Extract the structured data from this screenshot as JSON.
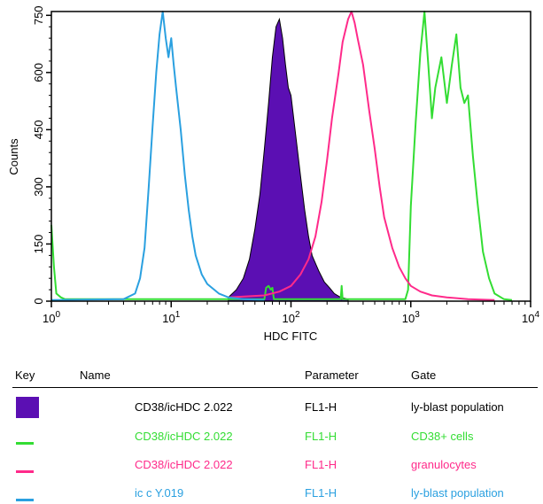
{
  "chart_data": {
    "type": "histogram-overlay",
    "xlabel": "HDC FITC",
    "ylabel": "Counts",
    "x_scale": "log",
    "xlim": [
      1,
      10000
    ],
    "ylim": [
      0,
      760
    ],
    "x_tick_values": [
      1,
      10,
      100,
      1000,
      10000
    ],
    "x_ticks": [
      {
        "base": "10",
        "exp": "0"
      },
      {
        "base": "10",
        "exp": "1"
      },
      {
        "base": "10",
        "exp": "2"
      },
      {
        "base": "10",
        "exp": "3"
      },
      {
        "base": "10",
        "exp": "4"
      }
    ],
    "y_ticks": [
      0,
      150,
      300,
      450,
      600,
      750
    ],
    "series": [
      {
        "name": "CD38/icHDC 2.022",
        "parameter": "FL1-H",
        "gate": "ly-blast population",
        "color": "#5b0fb3",
        "style": "filled",
        "x": [
          30,
          35,
          40,
          45,
          50,
          55,
          60,
          65,
          70,
          75,
          80,
          85,
          90,
          95,
          100,
          110,
          120,
          130,
          140,
          150,
          170,
          190,
          210,
          230,
          260,
          300
        ],
        "y": [
          10,
          30,
          60,
          110,
          190,
          280,
          400,
          520,
          640,
          720,
          740,
          690,
          620,
          560,
          540,
          430,
          330,
          240,
          170,
          120,
          80,
          50,
          35,
          20,
          10,
          5
        ]
      },
      {
        "name": "CD38/icHDC 2.022",
        "parameter": "FL1-H",
        "gate": "CD38+ cells",
        "color": "#33dd33",
        "style": "line",
        "x": [
          1,
          1.05,
          1.1,
          1.2,
          1.3,
          60,
          62,
          65,
          68,
          70,
          72,
          260,
          265,
          270,
          900,
          950,
          1000,
          1100,
          1200,
          1300,
          1400,
          1500,
          1600,
          1800,
          2000,
          2200,
          2400,
          2600,
          2800,
          3000,
          3300,
          3600,
          4000,
          4500,
          5000,
          6000,
          7000
        ],
        "y": [
          200,
          90,
          20,
          10,
          5,
          5,
          35,
          40,
          30,
          35,
          5,
          5,
          40,
          5,
          5,
          30,
          250,
          470,
          650,
          760,
          620,
          480,
          560,
          640,
          520,
          620,
          700,
          560,
          520,
          540,
          380,
          260,
          130,
          60,
          20,
          5,
          3
        ]
      },
      {
        "name": "CD38/icHDC 2.022",
        "parameter": "FL1-H",
        "gate": "granulocytes",
        "color": "#ff2a8a",
        "style": "line",
        "x": [
          30,
          60,
          80,
          100,
          120,
          140,
          160,
          180,
          200,
          220,
          250,
          270,
          300,
          320,
          340,
          360,
          400,
          450,
          500,
          550,
          600,
          700,
          800,
          900,
          1000,
          1200,
          1500,
          2000,
          3000,
          5000
        ],
        "y": [
          10,
          15,
          25,
          40,
          70,
          110,
          170,
          260,
          370,
          480,
          600,
          680,
          740,
          760,
          730,
          690,
          620,
          500,
          400,
          300,
          220,
          140,
          90,
          60,
          40,
          25,
          15,
          10,
          5,
          3
        ]
      },
      {
        "name": "ic c  Y.019",
        "parameter": "FL1-H",
        "gate": "ly-blast population",
        "color": "#2aa0e0",
        "style": "line",
        "x": [
          1,
          4,
          5,
          5.5,
          6,
          6.5,
          7,
          7.5,
          8,
          8.5,
          9,
          9.5,
          10,
          10.5,
          11,
          12,
          13,
          14,
          15,
          16,
          18,
          20,
          25,
          30,
          40,
          60
        ],
        "y": [
          3,
          5,
          20,
          60,
          140,
          300,
          460,
          600,
          700,
          760,
          690,
          640,
          690,
          620,
          560,
          450,
          330,
          240,
          170,
          120,
          70,
          45,
          20,
          10,
          5,
          3
        ]
      }
    ]
  },
  "legend": {
    "headers": {
      "key": "Key",
      "name": "Name",
      "parameter": "Parameter",
      "gate": "Gate"
    }
  }
}
